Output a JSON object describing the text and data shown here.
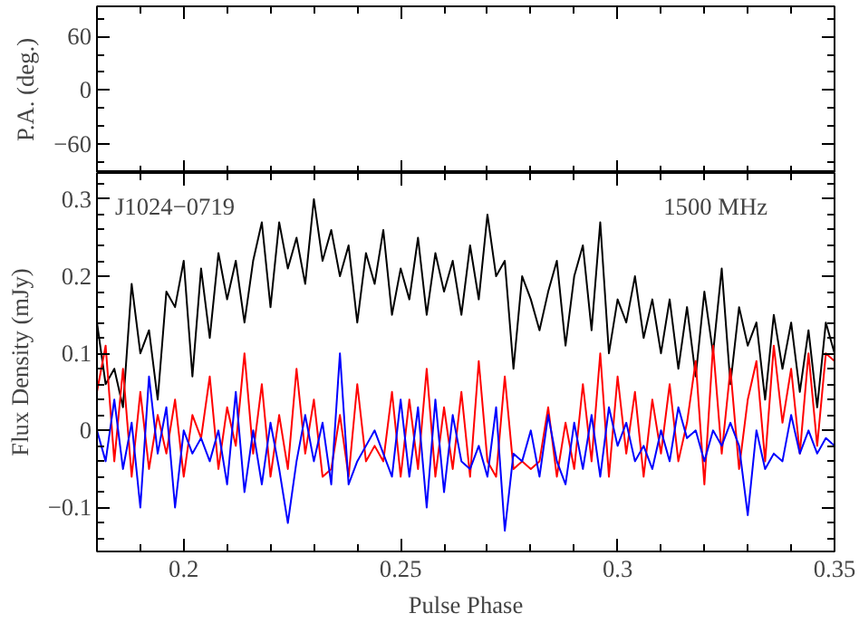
{
  "chart_data": [
    {
      "type": "line",
      "ylabel": "P.A. (deg.)",
      "xlim": [
        0.18,
        0.35
      ],
      "ylim": [
        -93,
        94
      ],
      "yticks": [
        -60,
        0,
        60
      ],
      "xticks": [
        0.2,
        0.25,
        0.3,
        0.35
      ],
      "tick_labels": "y",
      "grid": false
    },
    {
      "type": "line",
      "xlabel": "Pulse Phase",
      "ylabel": "Flux Density (mJy)",
      "xlim": [
        0.18,
        0.35
      ],
      "ylim": [
        -0.157,
        0.334
      ],
      "xticks": [
        0.2,
        0.25,
        0.3,
        0.35
      ],
      "yticks": [
        -0.1,
        0,
        0.1,
        0.2,
        0.3
      ],
      "grid": false,
      "annotations": [
        "J1024−0719",
        "1500 MHz"
      ],
      "x": [
        0.18,
        0.182,
        0.184,
        0.186,
        0.188,
        0.19,
        0.192,
        0.194,
        0.196,
        0.198,
        0.2,
        0.202,
        0.204,
        0.206,
        0.208,
        0.21,
        0.212,
        0.214,
        0.216,
        0.218,
        0.22,
        0.222,
        0.224,
        0.226,
        0.228,
        0.23,
        0.232,
        0.234,
        0.236,
        0.238,
        0.24,
        0.242,
        0.244,
        0.246,
        0.248,
        0.25,
        0.252,
        0.254,
        0.256,
        0.258,
        0.26,
        0.262,
        0.264,
        0.266,
        0.268,
        0.27,
        0.272,
        0.274,
        0.276,
        0.278,
        0.28,
        0.282,
        0.284,
        0.286,
        0.288,
        0.29,
        0.292,
        0.294,
        0.296,
        0.298,
        0.3,
        0.302,
        0.304,
        0.306,
        0.308,
        0.31,
        0.312,
        0.314,
        0.316,
        0.318,
        0.32,
        0.322,
        0.324,
        0.326,
        0.328,
        0.33,
        0.332,
        0.334,
        0.336,
        0.338,
        0.34,
        0.342,
        0.344,
        0.346,
        0.348,
        0.35
      ],
      "series": [
        {
          "color": "#000000",
          "values": [
            0.14,
            0.06,
            0.08,
            0.03,
            0.19,
            0.1,
            0.13,
            0.04,
            0.18,
            0.16,
            0.22,
            0.07,
            0.21,
            0.12,
            0.23,
            0.17,
            0.22,
            0.14,
            0.22,
            0.27,
            0.16,
            0.27,
            0.21,
            0.25,
            0.19,
            0.3,
            0.22,
            0.26,
            0.2,
            0.24,
            0.14,
            0.23,
            0.19,
            0.26,
            0.15,
            0.21,
            0.17,
            0.25,
            0.15,
            0.23,
            0.18,
            0.22,
            0.15,
            0.24,
            0.17,
            0.28,
            0.2,
            0.22,
            0.08,
            0.2,
            0.17,
            0.13,
            0.18,
            0.22,
            0.11,
            0.2,
            0.24,
            0.13,
            0.27,
            0.1,
            0.17,
            0.14,
            0.2,
            0.12,
            0.17,
            0.1,
            0.17,
            0.08,
            0.16,
            0.07,
            0.18,
            0.1,
            0.21,
            0.06,
            0.16,
            0.11,
            0.14,
            0.04,
            0.15,
            0.08,
            0.14,
            0.05,
            0.13,
            0.03,
            0.14,
            0.1
          ]
        },
        {
          "color": "#ff0000",
          "values": [
            0.05,
            0.11,
            -0.04,
            0.08,
            -0.06,
            0.05,
            -0.05,
            0.02,
            -0.03,
            0.04,
            -0.06,
            0.02,
            -0.01,
            0.07,
            -0.05,
            0.03,
            -0.02,
            0.1,
            -0.03,
            0.06,
            -0.06,
            0.02,
            -0.05,
            0.08,
            -0.03,
            0.04,
            -0.06,
            -0.05,
            0.02,
            -0.06,
            0.06,
            -0.04,
            -0.02,
            -0.04,
            0.05,
            -0.06,
            0.04,
            -0.05,
            0.08,
            -0.06,
            0.03,
            -0.05,
            0.05,
            -0.06,
            0.09,
            -0.04,
            -0.06,
            0.07,
            -0.05,
            -0.04,
            -0.05,
            -0.04,
            0.03,
            -0.06,
            0.01,
            -0.05,
            0.06,
            -0.04,
            0.1,
            -0.06,
            0.07,
            -0.03,
            0.05,
            -0.06,
            0.04,
            -0.03,
            0.06,
            -0.04,
            0.01,
            0.09,
            -0.07,
            0.11,
            -0.03,
            0.08,
            -0.05,
            0.04,
            0.09,
            -0.04,
            0.11,
            0.01,
            0.08,
            -0.03,
            0.1,
            -0.02,
            0.1,
            0.09
          ]
        },
        {
          "color": "#0000ff",
          "values": [
            0.0,
            -0.04,
            0.04,
            -0.05,
            0.01,
            -0.1,
            0.07,
            -0.03,
            0.03,
            -0.1,
            0.0,
            -0.03,
            -0.01,
            -0.04,
            0.0,
            -0.07,
            0.05,
            -0.08,
            0.0,
            -0.07,
            0.01,
            -0.05,
            -0.12,
            -0.04,
            0.02,
            -0.04,
            0.01,
            -0.07,
            0.1,
            -0.07,
            -0.04,
            -0.02,
            0.0,
            -0.03,
            -0.06,
            0.04,
            -0.06,
            0.03,
            -0.1,
            0.04,
            -0.08,
            0.02,
            -0.04,
            -0.05,
            -0.02,
            -0.06,
            0.03,
            -0.13,
            -0.03,
            -0.04,
            0.0,
            -0.06,
            0.02,
            -0.04,
            -0.07,
            0.01,
            -0.05,
            0.02,
            -0.06,
            0.03,
            -0.02,
            0.01,
            -0.04,
            -0.02,
            -0.05,
            0.0,
            -0.04,
            0.03,
            -0.01,
            0.0,
            -0.04,
            0.0,
            -0.02,
            0.01,
            -0.02,
            -0.11,
            0.0,
            -0.05,
            -0.03,
            -0.04,
            0.02,
            -0.03,
            0.0,
            -0.03,
            -0.01,
            -0.02
          ]
        }
      ]
    }
  ]
}
